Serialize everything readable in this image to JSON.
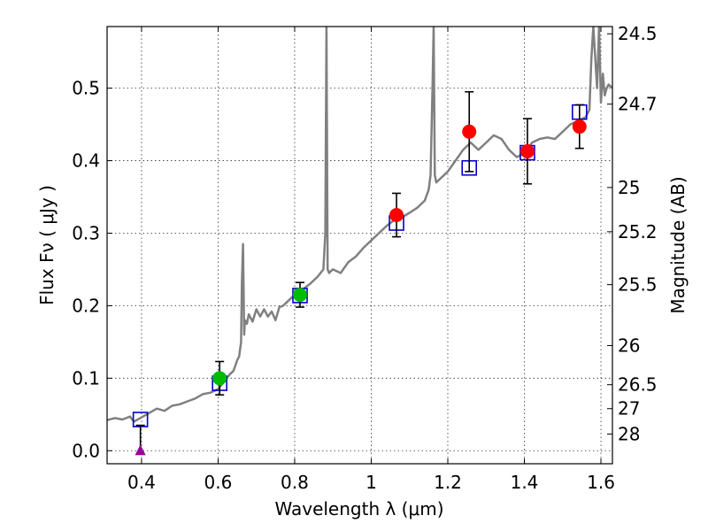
{
  "chart_data": {
    "type": "scatter",
    "xlabel": "Wavelength  λ (μm)",
    "ylabel": "Flux  Fν ( μJy )",
    "y2label": "Magnitude (AB)",
    "xlim": [
      0.31,
      1.63
    ],
    "ylim": [
      -0.018,
      0.585
    ],
    "x_ticks": [
      0.4,
      0.6,
      0.8,
      1.0,
      1.2,
      1.4,
      1.6
    ],
    "x_tick_labels": [
      "0.4",
      "0.6",
      "0.8",
      "1",
      "1.2",
      "1.4",
      "1.6"
    ],
    "y_ticks": [
      0.0,
      0.1,
      0.2,
      0.3,
      0.4,
      0.5
    ],
    "y_tick_labels": [
      "0.0",
      "0.1",
      "0.2",
      "0.3",
      "0.4",
      "0.5"
    ],
    "right_axis_ticks": [
      {
        "label": "24.5",
        "flux": 0.575
      },
      {
        "label": "24.7",
        "flux": 0.478
      },
      {
        "label": "25",
        "flux": 0.363
      },
      {
        "label": "25.2",
        "flux": 0.302
      },
      {
        "label": "25.5",
        "flux": 0.229
      },
      {
        "label": "26",
        "flux": 0.145
      },
      {
        "label": "26.5",
        "flux": 0.091
      },
      {
        "label": "27",
        "flux": 0.058
      },
      {
        "label": "28",
        "flux": 0.023
      }
    ],
    "grid": true,
    "series": [
      {
        "name": "template-spectrum",
        "kind": "line",
        "color": "#808080",
        "x": [
          0.31,
          0.33,
          0.35,
          0.37,
          0.38,
          0.4,
          0.42,
          0.44,
          0.46,
          0.48,
          0.5,
          0.52,
          0.54,
          0.56,
          0.58,
          0.6,
          0.62,
          0.63,
          0.64,
          0.65,
          0.655,
          0.66,
          0.662,
          0.665,
          0.668,
          0.67,
          0.675,
          0.68,
          0.69,
          0.7,
          0.71,
          0.72,
          0.73,
          0.74,
          0.75,
          0.76,
          0.77,
          0.78,
          0.79,
          0.8,
          0.82,
          0.84,
          0.86,
          0.875,
          0.88,
          0.883,
          0.886,
          0.89,
          0.895,
          0.9,
          0.92,
          0.94,
          0.96,
          0.98,
          1.0,
          1.02,
          1.04,
          1.06,
          1.08,
          1.1,
          1.12,
          1.14,
          1.15,
          1.155,
          1.16,
          1.163,
          1.166,
          1.17,
          1.18,
          1.19,
          1.2,
          1.22,
          1.24,
          1.26,
          1.28,
          1.3,
          1.32,
          1.34,
          1.36,
          1.38,
          1.4,
          1.42,
          1.44,
          1.46,
          1.48,
          1.5,
          1.52,
          1.54,
          1.56,
          1.57,
          1.575,
          1.58,
          1.59,
          1.595,
          1.6,
          1.605,
          1.61,
          1.615,
          1.62,
          1.63
        ],
        "y": [
          0.042,
          0.045,
          0.043,
          0.047,
          0.04,
          0.046,
          0.052,
          0.058,
          0.055,
          0.062,
          0.064,
          0.068,
          0.072,
          0.078,
          0.08,
          0.085,
          0.098,
          0.105,
          0.11,
          0.125,
          0.13,
          0.15,
          0.23,
          0.285,
          0.16,
          0.18,
          0.175,
          0.188,
          0.178,
          0.195,
          0.185,
          0.195,
          0.185,
          0.192,
          0.18,
          0.198,
          0.2,
          0.205,
          0.21,
          0.215,
          0.222,
          0.23,
          0.24,
          0.25,
          0.3,
          0.585,
          0.25,
          0.245,
          0.248,
          0.25,
          0.245,
          0.26,
          0.268,
          0.28,
          0.29,
          0.3,
          0.31,
          0.318,
          0.322,
          0.328,
          0.335,
          0.345,
          0.36,
          0.38,
          0.5,
          0.585,
          0.38,
          0.37,
          0.375,
          0.38,
          0.385,
          0.4,
          0.415,
          0.425,
          0.415,
          0.425,
          0.435,
          0.43,
          0.415,
          0.405,
          0.41,
          0.425,
          0.43,
          0.432,
          0.43,
          0.44,
          0.45,
          0.455,
          0.46,
          0.47,
          0.54,
          0.585,
          0.5,
          0.585,
          0.48,
          0.52,
          0.49,
          0.5,
          0.505,
          0.5
        ]
      },
      {
        "name": "model-photometry",
        "kind": "open-square",
        "color": "#0000cc",
        "x": [
          0.397,
          0.604,
          0.814,
          1.066,
          1.256,
          1.408,
          1.544
        ],
        "y": [
          0.043,
          0.093,
          0.214,
          0.314,
          0.39,
          0.411,
          0.467
        ]
      },
      {
        "name": "observed-red",
        "kind": "filled-circle",
        "color": "#ff0000",
        "x": [
          1.066,
          1.256,
          1.408,
          1.544
        ],
        "y": [
          0.325,
          0.44,
          0.413,
          0.447
        ],
        "err": [
          0.03,
          0.055,
          0.045,
          0.03
        ]
      },
      {
        "name": "observed-green",
        "kind": "filled-circle",
        "color": "#00bb00",
        "x": [
          0.604,
          0.814
        ],
        "y": [
          0.1,
          0.215
        ],
        "err": [
          0.023,
          0.017
        ]
      },
      {
        "name": "upper-limit",
        "kind": "triangle",
        "color": "#990099",
        "x": [
          0.397
        ],
        "y": [
          0.0
        ],
        "err_up": [
          0.035
        ]
      }
    ]
  }
}
